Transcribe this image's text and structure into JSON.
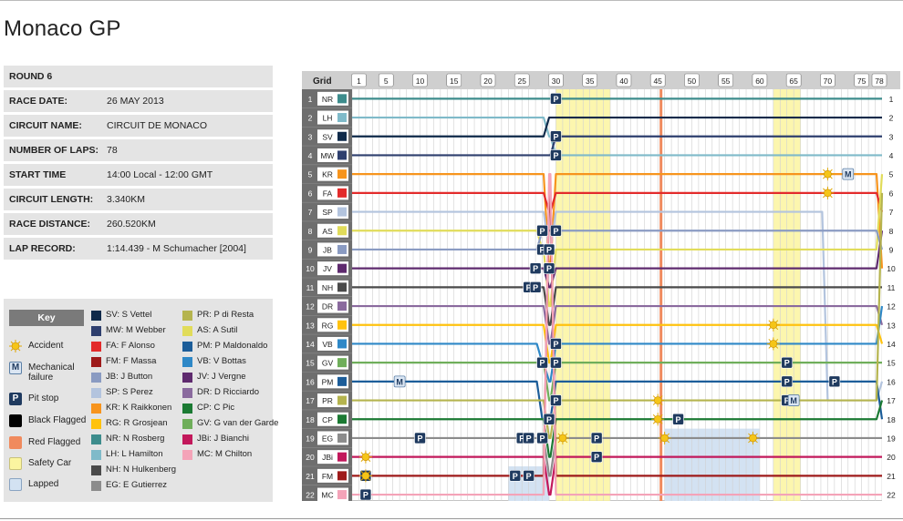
{
  "title": "Monaco GP",
  "info": [
    {
      "label": "ROUND 6",
      "value": ""
    },
    {
      "label": "RACE DATE:",
      "value": "26 MAY 2013"
    },
    {
      "label": "CIRCUIT NAME:",
      "value": "CIRCUIT DE MONACO"
    },
    {
      "label": "NUMBER OF LAPS:",
      "value": "78"
    },
    {
      "label": "START TIME",
      "value": "14:00 Local - 12:00 GMT"
    },
    {
      "label": "CIRCUIT LENGTH:",
      "value": "3.340KM"
    },
    {
      "label": "RACE DISTANCE:",
      "value": "260.520KM"
    },
    {
      "label": "LAP RECORD:",
      "value": "1:14.439 - M Schumacher [2004]"
    }
  ],
  "key": {
    "heading": "Key",
    "items": [
      {
        "label": "Accident",
        "icon": "accident-icon",
        "color": "#f5c518"
      },
      {
        "label": "Mechanical failure",
        "icon": "mechanical-failure-icon",
        "color": "#5b7fa6",
        "glyph": "M"
      },
      {
        "label": "Pit stop",
        "icon": "pit-stop-icon",
        "color": "#1f3a5f",
        "glyph": "P"
      },
      {
        "label": "Black Flagged",
        "icon": "black-flag-icon",
        "color": "#000000"
      },
      {
        "label": "Red Flagged",
        "icon": "red-flag-icon",
        "color": "#f08a5d"
      },
      {
        "label": "Safety Car",
        "icon": "safety-car-icon",
        "color": "#fbf5a0"
      },
      {
        "label": "Lapped",
        "icon": "lapped-icon",
        "color": "#d3e2f2"
      }
    ]
  },
  "drivers_key": [
    {
      "label": "SV: S Vettel",
      "color": "#0f2a4a"
    },
    {
      "label": "MW: M Webber",
      "color": "#2e3f6e"
    },
    {
      "label": "FA: F Alonso",
      "color": "#e32b2b"
    },
    {
      "label": "FM: F Massa",
      "color": "#9e1a1a"
    },
    {
      "label": "JB: J Button",
      "color": "#8a9bc2"
    },
    {
      "label": "SP: S Perez",
      "color": "#b3c4de"
    },
    {
      "label": "KR: K Raikkonen",
      "color": "#f7941d"
    },
    {
      "label": "RG: R Grosjean",
      "color": "#ffc20e"
    },
    {
      "label": "NR: N Rosberg",
      "color": "#3d8c8c"
    },
    {
      "label": "LH: L Hamilton",
      "color": "#7fbac9"
    },
    {
      "label": "NH: N Hulkenberg",
      "color": "#4a4a4a"
    },
    {
      "label": "EG: E Gutierrez",
      "color": "#8c8c8c"
    },
    {
      "label": "PR: P di Resta",
      "color": "#b5b44e"
    },
    {
      "label": "AS: A Sutil",
      "color": "#e1dc5a"
    },
    {
      "label": "PM: P Maldonaldo",
      "color": "#1c5d99"
    },
    {
      "label": "VB: V Bottas",
      "color": "#2e88c7"
    },
    {
      "label": "JV: J Vergne",
      "color": "#5e2a6e"
    },
    {
      "label": "DR: D Ricciardo",
      "color": "#8a6a9e"
    },
    {
      "label": "CP: C Pic",
      "color": "#1b7a33"
    },
    {
      "label": "GV: G van der Garde",
      "color": "#6fae5a"
    },
    {
      "label": "JBi: J Bianchi",
      "color": "#c2185b"
    },
    {
      "label": "MC: M Chilton",
      "color": "#f4a3b8"
    }
  ],
  "chart_data": {
    "type": "line",
    "title": "Monaco GP",
    "grid_header": "Grid",
    "x_ticks": [
      1,
      5,
      10,
      15,
      20,
      25,
      30,
      35,
      40,
      45,
      50,
      55,
      60,
      65,
      70,
      75,
      78
    ],
    "xlim": [
      0,
      78
    ],
    "ylim": [
      1,
      22
    ],
    "grid_order": [
      "NR",
      "LH",
      "SV",
      "MW",
      "KR",
      "FA",
      "SP",
      "AS",
      "JB",
      "JV",
      "NH",
      "DR",
      "RG",
      "VB",
      "GV",
      "PM",
      "PR",
      "CP",
      "EG",
      "JBi",
      "FM",
      "MC"
    ],
    "positions_at_lap": {
      "laps": [
        0,
        10,
        20,
        28,
        29,
        30,
        35,
        45,
        60,
        70,
        78
      ],
      "series": [
        {
          "name": "NR",
          "color": "#3d8c8c",
          "values": [
            1,
            1,
            1,
            1,
            1,
            1,
            1,
            1,
            1,
            1,
            1
          ]
        },
        {
          "name": "LH",
          "color": "#7fbac9",
          "values": [
            2,
            2,
            2,
            2,
            3,
            4,
            4,
            4,
            4,
            4,
            4
          ]
        },
        {
          "name": "SV",
          "color": "#0f2a4a",
          "values": [
            3,
            3,
            3,
            3,
            2,
            2,
            2,
            2,
            2,
            2,
            2
          ]
        },
        {
          "name": "MW",
          "color": "#2e3f6e",
          "values": [
            4,
            4,
            4,
            4,
            4,
            3,
            3,
            3,
            3,
            3,
            3
          ]
        },
        {
          "name": "KR",
          "color": "#f7941d",
          "values": [
            5,
            5,
            5,
            5,
            10,
            5,
            5,
            5,
            5,
            5,
            10
          ]
        },
        {
          "name": "FA",
          "color": "#e32b2b",
          "values": [
            6,
            6,
            6,
            6,
            7,
            6,
            6,
            6,
            6,
            6,
            7
          ]
        },
        {
          "name": "SP",
          "color": "#b3c4de",
          "values": [
            7,
            7,
            7,
            7,
            9,
            7,
            7,
            7,
            7,
            17,
            16
          ]
        },
        {
          "name": "AS",
          "color": "#e1dc5a",
          "values": [
            8,
            8,
            8,
            9,
            12,
            9,
            9,
            9,
            9,
            9,
            5
          ]
        },
        {
          "name": "JB",
          "color": "#8a9bc2",
          "values": [
            9,
            9,
            9,
            8,
            8,
            8,
            8,
            8,
            8,
            8,
            9
          ]
        },
        {
          "name": "JV",
          "color": "#5e2a6e",
          "values": [
            10,
            10,
            10,
            10,
            11,
            10,
            10,
            10,
            10,
            10,
            8
          ]
        },
        {
          "name": "NH",
          "color": "#4a4a4a",
          "values": [
            11,
            11,
            11,
            11,
            13,
            11,
            11,
            11,
            11,
            11,
            11
          ]
        },
        {
          "name": "DR",
          "color": "#8a6a9e",
          "values": [
            12,
            12,
            12,
            12,
            14,
            12,
            12,
            12,
            12,
            12,
            13
          ]
        },
        {
          "name": "RG",
          "color": "#ffc20e",
          "values": [
            13,
            13,
            13,
            13,
            15,
            13,
            13,
            13,
            13,
            13,
            14
          ]
        },
        {
          "name": "VB",
          "color": "#2e88c7",
          "values": [
            14,
            14,
            14,
            15,
            16,
            14,
            14,
            14,
            14,
            14,
            12
          ]
        },
        {
          "name": "GV",
          "color": "#6fae5a",
          "values": [
            15,
            15,
            15,
            15,
            17,
            15,
            15,
            15,
            15,
            15,
            15
          ]
        },
        {
          "name": "PM",
          "color": "#1c5d99",
          "values": [
            16,
            16,
            16,
            18,
            18,
            16,
            16,
            16,
            16,
            16,
            18
          ]
        },
        {
          "name": "PR",
          "color": "#b5b44e",
          "values": [
            17,
            17,
            17,
            17,
            19,
            17,
            17,
            17,
            17,
            17,
            6
          ]
        },
        {
          "name": "CP",
          "color": "#1b7a33",
          "values": [
            18,
            18,
            18,
            18,
            20,
            18,
            18,
            18,
            18,
            18,
            17
          ]
        },
        {
          "name": "EG",
          "color": "#8c8c8c",
          "values": [
            19,
            19,
            19,
            19,
            21,
            19,
            19,
            19,
            19,
            19,
            19
          ]
        },
        {
          "name": "JBi",
          "color": "#c2185b",
          "values": [
            20,
            20,
            20,
            20,
            22,
            20,
            20,
            20,
            20,
            20,
            20
          ]
        },
        {
          "name": "FM",
          "color": "#9e1a1a",
          "values": [
            21,
            21,
            21,
            21,
            6,
            21,
            21,
            21,
            21,
            21,
            21
          ]
        },
        {
          "name": "MC",
          "color": "#f4a3b8",
          "values": [
            22,
            22,
            22,
            22,
            5,
            22,
            22,
            22,
            22,
            22,
            22
          ]
        }
      ]
    },
    "safety_car_laps": [
      [
        31,
        38
      ],
      [
        63,
        66
      ]
    ],
    "red_flag_laps": [
      [
        46,
        46
      ]
    ],
    "lapped_regions": [
      [
        24,
        29,
        21,
        22
      ],
      [
        47,
        60,
        19,
        22
      ]
    ],
    "events": [
      {
        "type": "pit",
        "lap": 30,
        "position": 1
      },
      {
        "type": "pit",
        "lap": 30,
        "position": 3
      },
      {
        "type": "pit",
        "lap": 30,
        "position": 4
      },
      {
        "type": "pit",
        "lap": 28,
        "position": 8
      },
      {
        "type": "pit",
        "lap": 30,
        "position": 8
      },
      {
        "type": "pit",
        "lap": 28,
        "position": 9
      },
      {
        "type": "pit",
        "lap": 29,
        "position": 9
      },
      {
        "type": "pit",
        "lap": 27,
        "position": 10
      },
      {
        "type": "pit",
        "lap": 29,
        "position": 10
      },
      {
        "type": "pit",
        "lap": 26,
        "position": 11
      },
      {
        "type": "pit",
        "lap": 27,
        "position": 11
      },
      {
        "type": "pit",
        "lap": 30,
        "position": 14
      },
      {
        "type": "pit",
        "lap": 28,
        "position": 15
      },
      {
        "type": "pit",
        "lap": 30,
        "position": 15
      },
      {
        "type": "pit",
        "lap": 30,
        "position": 17
      },
      {
        "type": "pit",
        "lap": 29,
        "position": 18
      },
      {
        "type": "pit",
        "lap": 25,
        "position": 19
      },
      {
        "type": "pit",
        "lap": 26,
        "position": 19
      },
      {
        "type": "pit",
        "lap": 28,
        "position": 19
      },
      {
        "type": "pit",
        "lap": 10,
        "position": 19
      },
      {
        "type": "pit",
        "lap": 36,
        "position": 19
      },
      {
        "type": "pit",
        "lap": 36,
        "position": 20
      },
      {
        "type": "pit",
        "lap": 24,
        "position": 21
      },
      {
        "type": "pit",
        "lap": 26,
        "position": 21
      },
      {
        "type": "pit",
        "lap": 2,
        "position": 21
      },
      {
        "type": "pit",
        "lap": 2,
        "position": 22
      },
      {
        "type": "pit",
        "lap": 48,
        "position": 18
      },
      {
        "type": "pit",
        "lap": 64,
        "position": 15
      },
      {
        "type": "pit",
        "lap": 64,
        "position": 16
      },
      {
        "type": "pit",
        "lap": 64,
        "position": 17
      },
      {
        "type": "pit",
        "lap": 71,
        "position": 16
      },
      {
        "type": "mechanical",
        "lap": 7,
        "position": 16
      },
      {
        "type": "mechanical",
        "lap": 65,
        "position": 17
      },
      {
        "type": "mechanical",
        "lap": 73,
        "position": 5
      },
      {
        "type": "accident",
        "lap": 31,
        "position": 19
      },
      {
        "type": "accident",
        "lap": 45,
        "position": 17
      },
      {
        "type": "accident",
        "lap": 45,
        "position": 18
      },
      {
        "type": "accident",
        "lap": 46,
        "position": 19
      },
      {
        "type": "accident",
        "lap": 59,
        "position": 19
      },
      {
        "type": "accident",
        "lap": 62,
        "position": 13
      },
      {
        "type": "accident",
        "lap": 62,
        "position": 14
      },
      {
        "type": "accident",
        "lap": 70,
        "position": 5
      },
      {
        "type": "accident",
        "lap": 70,
        "position": 6
      },
      {
        "type": "accident",
        "lap": 2,
        "position": 20
      },
      {
        "type": "accident",
        "lap": 2,
        "position": 21
      }
    ]
  }
}
